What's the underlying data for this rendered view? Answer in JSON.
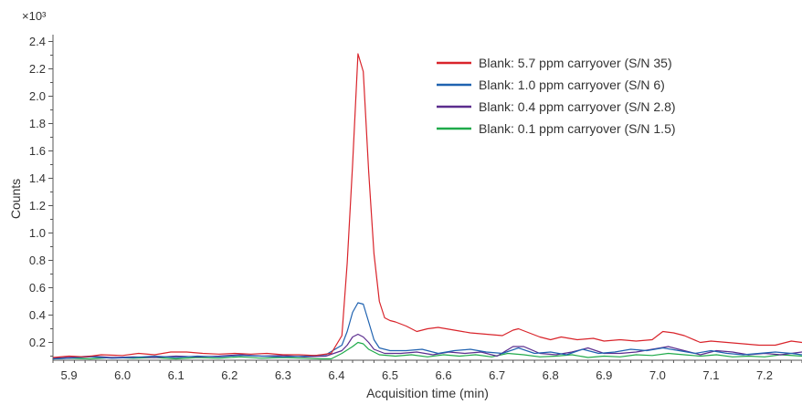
{
  "chart_data": {
    "type": "line",
    "xlabel": "Acquisition time (min)",
    "ylabel": "Counts",
    "y_multiplier_label": "×10³",
    "xlim": [
      5.87,
      7.27
    ],
    "ylim": [
      0.07,
      2.45
    ],
    "x_ticks": [
      "5.9",
      "6.0",
      "6.1",
      "6.2",
      "6.3",
      "6.4",
      "6.5",
      "6.6",
      "6.7",
      "6.8",
      "6.9",
      "7.0",
      "7.1",
      "7.2"
    ],
    "y_ticks": [
      "0.2",
      "0.4",
      "0.6",
      "0.8",
      "1.0",
      "1.2",
      "1.4",
      "1.6",
      "1.8",
      "2.0",
      "2.2",
      "2.4"
    ],
    "legend_position": "top-right",
    "series": [
      {
        "name": "Blank: 5.7 ppm carryover (S/N 35)",
        "color": "#d9242b",
        "points": [
          [
            5.87,
            0.09
          ],
          [
            5.9,
            0.1
          ],
          [
            5.93,
            0.095
          ],
          [
            5.96,
            0.11
          ],
          [
            6.0,
            0.105
          ],
          [
            6.03,
            0.12
          ],
          [
            6.06,
            0.11
          ],
          [
            6.09,
            0.13
          ],
          [
            6.12,
            0.13
          ],
          [
            6.15,
            0.12
          ],
          [
            6.18,
            0.115
          ],
          [
            6.21,
            0.12
          ],
          [
            6.24,
            0.115
          ],
          [
            6.27,
            0.12
          ],
          [
            6.3,
            0.11
          ],
          [
            6.33,
            0.11
          ],
          [
            6.36,
            0.105
          ],
          [
            6.39,
            0.12
          ],
          [
            6.41,
            0.25
          ],
          [
            6.42,
            0.78
          ],
          [
            6.43,
            1.5
          ],
          [
            6.44,
            2.31
          ],
          [
            6.45,
            2.18
          ],
          [
            6.46,
            1.45
          ],
          [
            6.47,
            0.85
          ],
          [
            6.48,
            0.5
          ],
          [
            6.49,
            0.38
          ],
          [
            6.5,
            0.36
          ],
          [
            6.51,
            0.35
          ],
          [
            6.53,
            0.32
          ],
          [
            6.55,
            0.28
          ],
          [
            6.57,
            0.3
          ],
          [
            6.59,
            0.31
          ],
          [
            6.62,
            0.29
          ],
          [
            6.65,
            0.27
          ],
          [
            6.68,
            0.26
          ],
          [
            6.71,
            0.25
          ],
          [
            6.73,
            0.29
          ],
          [
            6.74,
            0.3
          ],
          [
            6.76,
            0.27
          ],
          [
            6.78,
            0.24
          ],
          [
            6.8,
            0.22
          ],
          [
            6.82,
            0.24
          ],
          [
            6.85,
            0.22
          ],
          [
            6.88,
            0.23
          ],
          [
            6.9,
            0.21
          ],
          [
            6.93,
            0.22
          ],
          [
            6.96,
            0.21
          ],
          [
            6.99,
            0.22
          ],
          [
            7.01,
            0.28
          ],
          [
            7.03,
            0.27
          ],
          [
            7.05,
            0.25
          ],
          [
            7.08,
            0.2
          ],
          [
            7.1,
            0.21
          ],
          [
            7.13,
            0.2
          ],
          [
            7.16,
            0.19
          ],
          [
            7.19,
            0.18
          ],
          [
            7.22,
            0.18
          ],
          [
            7.25,
            0.21
          ],
          [
            7.27,
            0.2
          ]
        ]
      },
      {
        "name": "Blank: 1.0 ppm carryover (S/N 6)",
        "color": "#1f62b0",
        "points": [
          [
            5.87,
            0.08
          ],
          [
            5.9,
            0.085
          ],
          [
            5.94,
            0.095
          ],
          [
            5.98,
            0.085
          ],
          [
            6.02,
            0.09
          ],
          [
            6.06,
            0.1
          ],
          [
            6.1,
            0.09
          ],
          [
            6.14,
            0.1
          ],
          [
            6.18,
            0.095
          ],
          [
            6.22,
            0.105
          ],
          [
            6.26,
            0.1
          ],
          [
            6.3,
            0.095
          ],
          [
            6.34,
            0.1
          ],
          [
            6.38,
            0.11
          ],
          [
            6.41,
            0.18
          ],
          [
            6.42,
            0.28
          ],
          [
            6.43,
            0.42
          ],
          [
            6.44,
            0.49
          ],
          [
            6.45,
            0.48
          ],
          [
            6.46,
            0.35
          ],
          [
            6.47,
            0.22
          ],
          [
            6.48,
            0.16
          ],
          [
            6.5,
            0.14
          ],
          [
            6.53,
            0.14
          ],
          [
            6.56,
            0.15
          ],
          [
            6.59,
            0.12
          ],
          [
            6.62,
            0.14
          ],
          [
            6.65,
            0.15
          ],
          [
            6.68,
            0.13
          ],
          [
            6.71,
            0.12
          ],
          [
            6.74,
            0.16
          ],
          [
            6.77,
            0.12
          ],
          [
            6.8,
            0.13
          ],
          [
            6.83,
            0.11
          ],
          [
            6.86,
            0.15
          ],
          [
            6.89,
            0.12
          ],
          [
            6.92,
            0.13
          ],
          [
            6.95,
            0.15
          ],
          [
            6.98,
            0.14
          ],
          [
            7.01,
            0.16
          ],
          [
            7.04,
            0.14
          ],
          [
            7.07,
            0.12
          ],
          [
            7.1,
            0.14
          ],
          [
            7.13,
            0.12
          ],
          [
            7.16,
            0.11
          ],
          [
            7.19,
            0.12
          ],
          [
            7.22,
            0.13
          ],
          [
            7.25,
            0.12
          ],
          [
            7.27,
            0.11
          ]
        ]
      },
      {
        "name": "Blank: 0.4 ppm carryover (S/N 2.8)",
        "color": "#5b2d8e",
        "points": [
          [
            5.87,
            0.085
          ],
          [
            5.9,
            0.09
          ],
          [
            5.94,
            0.1
          ],
          [
            5.98,
            0.09
          ],
          [
            6.02,
            0.095
          ],
          [
            6.06,
            0.09
          ],
          [
            6.1,
            0.1
          ],
          [
            6.14,
            0.095
          ],
          [
            6.18,
            0.1
          ],
          [
            6.22,
            0.11
          ],
          [
            6.26,
            0.1
          ],
          [
            6.3,
            0.105
          ],
          [
            6.34,
            0.095
          ],
          [
            6.38,
            0.1
          ],
          [
            6.41,
            0.14
          ],
          [
            6.42,
            0.18
          ],
          [
            6.43,
            0.24
          ],
          [
            6.44,
            0.26
          ],
          [
            6.45,
            0.24
          ],
          [
            6.46,
            0.2
          ],
          [
            6.47,
            0.15
          ],
          [
            6.49,
            0.12
          ],
          [
            6.52,
            0.12
          ],
          [
            6.55,
            0.13
          ],
          [
            6.58,
            0.11
          ],
          [
            6.61,
            0.13
          ],
          [
            6.64,
            0.12
          ],
          [
            6.67,
            0.13
          ],
          [
            6.7,
            0.1
          ],
          [
            6.73,
            0.17
          ],
          [
            6.75,
            0.17
          ],
          [
            6.78,
            0.12
          ],
          [
            6.81,
            0.11
          ],
          [
            6.84,
            0.13
          ],
          [
            6.87,
            0.16
          ],
          [
            6.9,
            0.12
          ],
          [
            6.93,
            0.12
          ],
          [
            6.96,
            0.13
          ],
          [
            6.99,
            0.15
          ],
          [
            7.02,
            0.17
          ],
          [
            7.05,
            0.14
          ],
          [
            7.08,
            0.11
          ],
          [
            7.11,
            0.14
          ],
          [
            7.14,
            0.13
          ],
          [
            7.17,
            0.11
          ],
          [
            7.2,
            0.12
          ],
          [
            7.23,
            0.11
          ],
          [
            7.27,
            0.13
          ]
        ]
      },
      {
        "name": "Blank: 0.1 ppm carryover (S/N 1.5)",
        "color": "#1faa4a",
        "points": [
          [
            5.87,
            0.08
          ],
          [
            5.9,
            0.085
          ],
          [
            5.94,
            0.08
          ],
          [
            5.98,
            0.09
          ],
          [
            6.02,
            0.085
          ],
          [
            6.06,
            0.09
          ],
          [
            6.1,
            0.08
          ],
          [
            6.14,
            0.09
          ],
          [
            6.18,
            0.085
          ],
          [
            6.22,
            0.095
          ],
          [
            6.26,
            0.085
          ],
          [
            6.3,
            0.09
          ],
          [
            6.34,
            0.085
          ],
          [
            6.37,
            0.08
          ],
          [
            6.39,
            0.08
          ],
          [
            6.41,
            0.12
          ],
          [
            6.43,
            0.17
          ],
          [
            6.44,
            0.2
          ],
          [
            6.45,
            0.19
          ],
          [
            6.46,
            0.15
          ],
          [
            6.48,
            0.11
          ],
          [
            6.51,
            0.1
          ],
          [
            6.54,
            0.11
          ],
          [
            6.57,
            0.095
          ],
          [
            6.6,
            0.11
          ],
          [
            6.63,
            0.1
          ],
          [
            6.66,
            0.11
          ],
          [
            6.69,
            0.095
          ],
          [
            6.72,
            0.12
          ],
          [
            6.75,
            0.11
          ],
          [
            6.78,
            0.095
          ],
          [
            6.81,
            0.1
          ],
          [
            6.84,
            0.11
          ],
          [
            6.87,
            0.09
          ],
          [
            6.9,
            0.1
          ],
          [
            6.93,
            0.095
          ],
          [
            6.96,
            0.11
          ],
          [
            6.99,
            0.105
          ],
          [
            7.02,
            0.12
          ],
          [
            7.05,
            0.11
          ],
          [
            7.08,
            0.1
          ],
          [
            7.11,
            0.11
          ],
          [
            7.14,
            0.095
          ],
          [
            7.17,
            0.1
          ],
          [
            7.2,
            0.095
          ],
          [
            7.23,
            0.11
          ],
          [
            7.27,
            0.1
          ]
        ]
      }
    ]
  }
}
